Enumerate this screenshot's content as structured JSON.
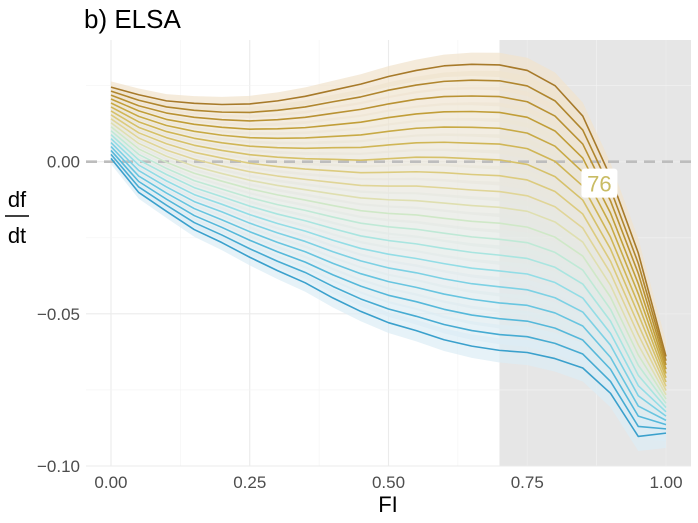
{
  "chart_data": {
    "type": "line",
    "title": "b) ELSA",
    "xlabel": "FI",
    "ylabel_num": "df",
    "ylabel_den": "dt",
    "xlim": [
      -0.045,
      1.045
    ],
    "ylim": [
      -0.1,
      0.04
    ],
    "xticks": [
      0.0,
      0.25,
      0.5,
      0.75,
      1.0
    ],
    "xtick_labels": [
      "0.00",
      "0.25",
      "0.50",
      "0.75",
      "1.00"
    ],
    "yticks": [
      0.0,
      -0.05,
      -0.1
    ],
    "ytick_labels": [
      "0.00",
      "−0.05",
      "−0.10"
    ],
    "grid": true,
    "reference_line_y": 0.0,
    "shaded_region_x": [
      0.7,
      1.045
    ],
    "annotation": {
      "text": "76",
      "x": 0.88,
      "y": -0.0072
    },
    "x": [
      0.0,
      0.05,
      0.1,
      0.15,
      0.2,
      0.25,
      0.3,
      0.35,
      0.4,
      0.45,
      0.5,
      0.55,
      0.6,
      0.65,
      0.7,
      0.75,
      0.8,
      0.85,
      0.9,
      0.95,
      1.0
    ],
    "series": [
      {
        "values": [
          0.0245,
          0.022,
          0.02,
          0.0192,
          0.0188,
          0.019,
          0.02,
          0.0215,
          0.0235,
          0.0255,
          0.028,
          0.03,
          0.0315,
          0.032,
          0.0318,
          0.03,
          0.025,
          0.015,
          -0.005,
          -0.03,
          -0.064
        ]
      },
      {
        "values": [
          0.0232,
          0.0202,
          0.018,
          0.0169,
          0.0163,
          0.0162,
          0.0169,
          0.018,
          0.0197,
          0.0213,
          0.0235,
          0.0252,
          0.0264,
          0.0268,
          0.0266,
          0.0249,
          0.02,
          0.0104,
          -0.009,
          -0.0334,
          -0.0654
        ]
      },
      {
        "values": [
          0.0219,
          0.0184,
          0.016,
          0.0146,
          0.0138,
          0.0134,
          0.0138,
          0.0146,
          0.0159,
          0.0172,
          0.019,
          0.0205,
          0.0214,
          0.0216,
          0.0214,
          0.0197,
          0.015,
          0.0058,
          -0.0129,
          -0.0367,
          -0.0668
        ]
      },
      {
        "values": [
          0.0206,
          0.0167,
          0.0139,
          0.0123,
          0.0113,
          0.0107,
          0.0108,
          0.0112,
          0.0121,
          0.013,
          0.0145,
          0.0157,
          0.0164,
          0.0165,
          0.0162,
          0.0146,
          0.0101,
          0.0012,
          -0.0169,
          -0.0401,
          -0.0682
        ]
      },
      {
        "values": [
          0.0193,
          0.0149,
          0.0119,
          0.01,
          0.0087,
          0.0079,
          0.0077,
          0.0078,
          0.0083,
          0.0088,
          0.01,
          0.011,
          0.0114,
          0.0113,
          0.011,
          0.0094,
          0.0051,
          -0.0034,
          -0.0208,
          -0.0434,
          -0.0696
        ]
      },
      {
        "values": [
          0.018,
          0.0131,
          0.0099,
          0.0077,
          0.0062,
          0.0051,
          0.0046,
          0.0044,
          0.0046,
          0.0047,
          0.0055,
          0.0062,
          0.0064,
          0.0061,
          0.0058,
          0.0043,
          0.0001,
          -0.008,
          -0.0248,
          -0.0468,
          -0.071
        ]
      },
      {
        "values": [
          0.0167,
          0.0113,
          0.0079,
          0.0054,
          0.0037,
          0.0023,
          0.0015,
          0.001,
          0.0008,
          0.0005,
          0.001,
          0.0015,
          0.0014,
          0.001,
          0.0006,
          -0.0009,
          -0.0049,
          -0.0126,
          -0.0287,
          -0.0501,
          -0.0724
        ]
      },
      {
        "values": [
          0.0154,
          0.0095,
          0.0059,
          0.0031,
          0.0012,
          -0.0005,
          -0.0016,
          -0.0024,
          -0.003,
          -0.0036,
          -0.0035,
          -0.0033,
          -0.0036,
          -0.0042,
          -0.0046,
          -0.006,
          -0.0098,
          -0.0172,
          -0.0327,
          -0.0535,
          -0.0738
        ]
      },
      {
        "values": [
          0.0141,
          0.0078,
          0.0038,
          0.0008,
          -0.0014,
          -0.0033,
          -0.0047,
          -0.0058,
          -0.0068,
          -0.0078,
          -0.008,
          -0.008,
          -0.0086,
          -0.0093,
          -0.0098,
          -0.0112,
          -0.0148,
          -0.0218,
          -0.0366,
          -0.0568,
          -0.0752
        ]
      },
      {
        "values": [
          0.0128,
          0.006,
          0.0018,
          -0.0015,
          -0.0039,
          -0.0061,
          -0.0078,
          -0.0092,
          -0.0106,
          -0.0119,
          -0.0125,
          -0.0128,
          -0.0136,
          -0.0144,
          -0.015,
          -0.0163,
          -0.0198,
          -0.0264,
          -0.0406,
          -0.0602,
          -0.0766
        ]
      },
      {
        "values": [
          0.0115,
          0.0042,
          -0.0002,
          -0.0038,
          -0.0064,
          -0.0089,
          -0.0109,
          -0.0126,
          -0.0144,
          -0.0161,
          -0.017,
          -0.0175,
          -0.0186,
          -0.0196,
          -0.0202,
          -0.0215,
          -0.0248,
          -0.031,
          -0.0445,
          -0.0635,
          -0.078
        ]
      },
      {
        "values": [
          0.0102,
          0.0024,
          -0.0022,
          -0.0062,
          -0.009,
          -0.0118,
          -0.0141,
          -0.016,
          -0.0182,
          -0.0202,
          -0.0214,
          -0.0222,
          -0.0235,
          -0.0247,
          -0.0255,
          -0.0266,
          -0.0298,
          -0.0356,
          -0.0485,
          -0.0669,
          -0.0794
        ]
      },
      {
        "values": [
          0.0089,
          0.0006,
          -0.0042,
          -0.0085,
          -0.0115,
          -0.0146,
          -0.0172,
          -0.0194,
          -0.022,
          -0.0244,
          -0.0259,
          -0.027,
          -0.0285,
          -0.0298,
          -0.0307,
          -0.0318,
          -0.0347,
          -0.0402,
          -0.0524,
          -0.0702,
          -0.0808
        ]
      },
      {
        "values": [
          0.0076,
          -0.0011,
          -0.0063,
          -0.0108,
          -0.014,
          -0.0174,
          -0.0203,
          -0.0228,
          -0.0258,
          -0.0285,
          -0.0304,
          -0.0318,
          -0.0335,
          -0.035,
          -0.0359,
          -0.0369,
          -0.0397,
          -0.0448,
          -0.0564,
          -0.0736,
          -0.0822
        ]
      },
      {
        "values": [
          0.0063,
          -0.0029,
          -0.0083,
          -0.0131,
          -0.0165,
          -0.0202,
          -0.0234,
          -0.0262,
          -0.0296,
          -0.0326,
          -0.0349,
          -0.0365,
          -0.0385,
          -0.0401,
          -0.0411,
          -0.0421,
          -0.0447,
          -0.0494,
          -0.0603,
          -0.0769,
          -0.0836
        ]
      },
      {
        "values": [
          0.005,
          -0.0047,
          -0.0103,
          -0.0154,
          -0.0191,
          -0.023,
          -0.0265,
          -0.0296,
          -0.0334,
          -0.0368,
          -0.0394,
          -0.0413,
          -0.0435,
          -0.0452,
          -0.0464,
          -0.0472,
          -0.0497,
          -0.054,
          -0.0643,
          -0.0803,
          -0.085
        ]
      },
      {
        "values": [
          0.0037,
          -0.0065,
          -0.0123,
          -0.0177,
          -0.0216,
          -0.0258,
          -0.0296,
          -0.033,
          -0.0372,
          -0.0409,
          -0.0439,
          -0.046,
          -0.0485,
          -0.0504,
          -0.0516,
          -0.0524,
          -0.0547,
          -0.0586,
          -0.0682,
          -0.0836,
          -0.0864
        ]
      },
      {
        "values": [
          0.0024,
          -0.0083,
          -0.0143,
          -0.02,
          -0.0241,
          -0.0286,
          -0.0327,
          -0.0364,
          -0.041,
          -0.0451,
          -0.0484,
          -0.0508,
          -0.0535,
          -0.0555,
          -0.0568,
          -0.0575,
          -0.0597,
          -0.0632,
          -0.0722,
          -0.087,
          -0.0878
        ]
      },
      {
        "values": [
          0.0011,
          -0.0101,
          -0.0163,
          -0.0223,
          -0.0266,
          -0.0314,
          -0.0358,
          -0.0398,
          -0.0448,
          -0.0492,
          -0.0529,
          -0.0555,
          -0.0585,
          -0.0606,
          -0.062,
          -0.0627,
          -0.0647,
          -0.0678,
          -0.0761,
          -0.0903,
          -0.0892
        ]
      }
    ],
    "colors": [
      "#a77a2a",
      "#b0862e",
      "#b99233",
      "#c19e38",
      "#c8aa45",
      "#d0b656",
      "#d6c169",
      "#dccb7e",
      "#e0d597",
      "#dfdfb0",
      "#cfe8c7",
      "#bfe9d6",
      "#a9e5e0",
      "#93dde6",
      "#7dd1e4",
      "#68c5e0",
      "#55b8da",
      "#46abd2",
      "#3aa0cc"
    ],
    "colors_note": "light tan confidence ribbons at top fading to light blue ribbons at bottom",
    "ribbon_colors": [
      "#f1e3cc",
      "#dcecf5"
    ],
    "shade_color": "#e6e6e6",
    "grid_color": "#ebebeb",
    "reference_color": "#bdbdbd",
    "annotation_color": "#c9bc64"
  }
}
